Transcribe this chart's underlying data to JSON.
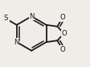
{
  "bg_color": "#f0ece8",
  "bond_color": "#1a1a1a",
  "lw": 1.3,
  "fs": 6.2,
  "dbo": 0.028,
  "figsize": [
    1.12,
    0.83
  ],
  "dpi": 100,
  "xlim": [
    0.05,
    0.95
  ],
  "ylim": [
    0.08,
    0.92
  ]
}
